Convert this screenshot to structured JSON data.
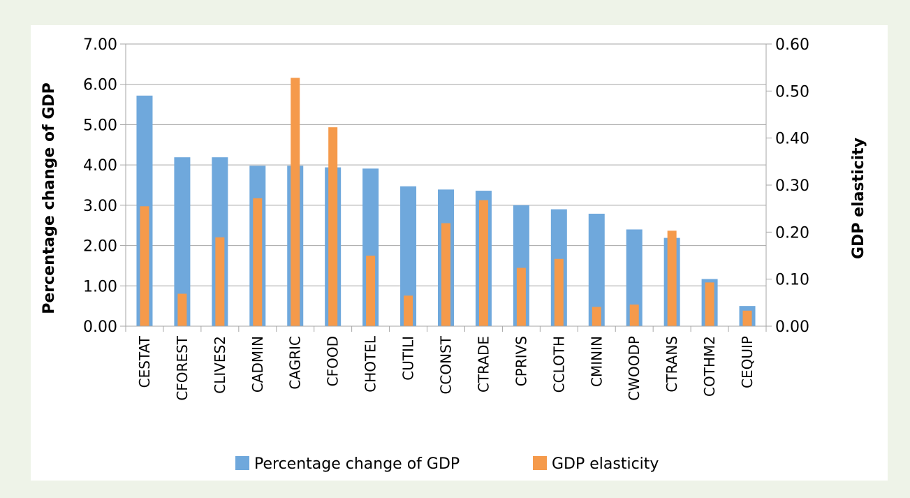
{
  "chart_data": {
    "type": "bar",
    "categories": [
      "CESTAT",
      "CFOREST",
      "CLIVES2",
      "CADMIN",
      "CAGRIC",
      "CFOOD",
      "CHOTEL",
      "CUTILI",
      "CCONST",
      "CTRADE",
      "CPRIVS",
      "CCLOTH",
      "CMININ",
      "CWOODP",
      "CTRANS",
      "COTHM2",
      "CEQUIP"
    ],
    "series": [
      {
        "name": "Percentage change of GDP",
        "axis": "left",
        "color": "#6fa8dc",
        "values": [
          5.72,
          4.19,
          4.19,
          3.98,
          3.98,
          3.94,
          3.91,
          3.47,
          3.39,
          3.36,
          3.0,
          2.9,
          2.79,
          2.4,
          2.19,
          1.17,
          0.5
        ]
      },
      {
        "name": "GDP elasticity",
        "axis": "right",
        "color": "#f59a4b",
        "values": [
          0.255,
          0.069,
          0.189,
          0.272,
          0.528,
          0.423,
          0.15,
          0.065,
          0.219,
          0.268,
          0.124,
          0.143,
          0.041,
          0.046,
          0.203,
          0.093,
          0.033
        ]
      }
    ],
    "y_left": {
      "label": "Percentage change of GDP",
      "ylim": [
        0,
        7
      ],
      "ticks": [
        "0.00",
        "1.00",
        "2.00",
        "3.00",
        "4.00",
        "5.00",
        "6.00",
        "7.00"
      ]
    },
    "y_right": {
      "label": "GDP elasticity",
      "ylim": [
        0,
        0.6
      ],
      "ticks": [
        "0.00",
        "0.10",
        "0.20",
        "0.30",
        "0.40",
        "0.50",
        "0.60"
      ]
    },
    "grid": true,
    "legend": "bottom"
  }
}
